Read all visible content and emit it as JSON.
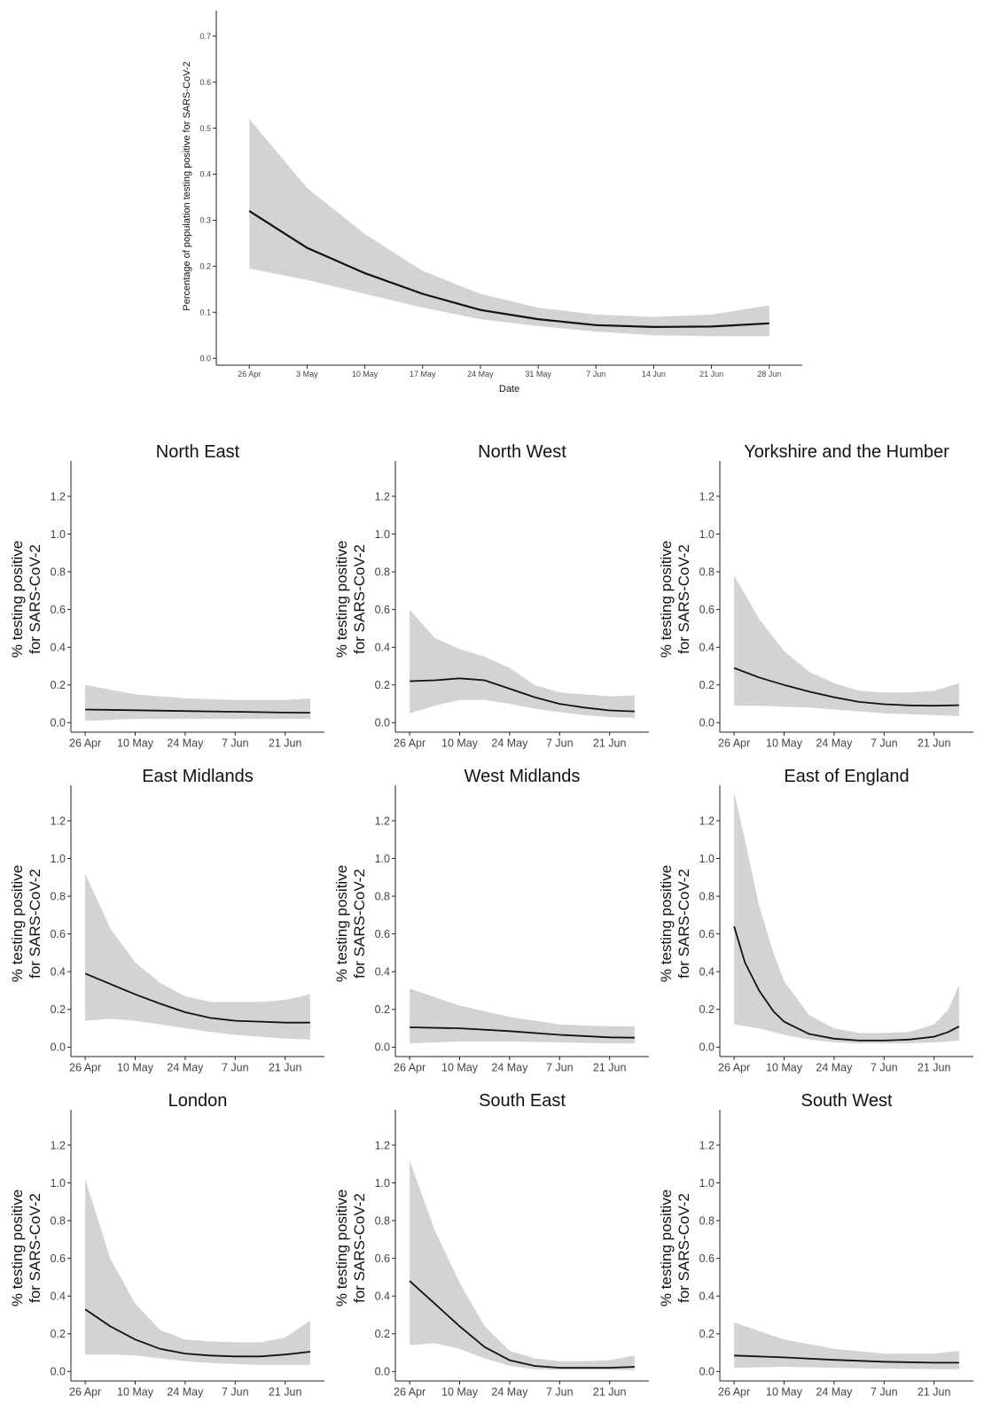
{
  "chart_data": [
    {
      "type": "line",
      "title": "",
      "xlabel": "Date",
      "ylabel": "Percentage of population testing positive for SARS-CoV-2",
      "x_ticks": [
        "26 Apr",
        "3 May",
        "10 May",
        "17 May",
        "24 May",
        "31 May",
        "7 Jun",
        "14 Jun",
        "21 Jun",
        "28 Jun"
      ],
      "y_ticks": [
        "0.0",
        "0.1",
        "0.2",
        "0.3",
        "0.4",
        "0.5",
        "0.6",
        "0.7"
      ],
      "xlim": [
        -4,
        67
      ],
      "ylim": [
        -0.015,
        0.74
      ],
      "grid": false,
      "x_days_from_26_apr": [
        0,
        7,
        14,
        21,
        28,
        35,
        42,
        49,
        56,
        63
      ],
      "series": [
        {
          "type": "line",
          "values": [
            0.32,
            0.24,
            0.185,
            0.14,
            0.105,
            0.085,
            0.072,
            0.068,
            0.069,
            0.076
          ]
        },
        {
          "type": "band",
          "lower": [
            0.195,
            0.17,
            0.14,
            0.11,
            0.085,
            0.07,
            0.058,
            0.05,
            0.048,
            0.048
          ],
          "upper": [
            0.52,
            0.37,
            0.27,
            0.19,
            0.14,
            0.11,
            0.095,
            0.09,
            0.095,
            0.115
          ]
        }
      ]
    },
    {
      "type": "line",
      "title": "North East",
      "ylabel_line1": "% testing positive",
      "ylabel_line2": "for SARS-CoV-2",
      "x_ticks": [
        "26 Apr",
        "10 May",
        "24 May",
        "7 Jun",
        "21 Jun"
      ],
      "y_ticks": [
        "0.0",
        "0.2",
        "0.4",
        "0.6",
        "0.8",
        "1.0",
        "1.2"
      ],
      "xlim": [
        -4,
        67
      ],
      "ylim": [
        -0.05,
        1.35
      ],
      "x_days_from_26_apr": [
        0,
        14,
        28,
        42,
        56,
        63
      ],
      "series": [
        {
          "type": "line",
          "values": [
            0.07,
            0.066,
            0.062,
            0.058,
            0.054,
            0.053
          ]
        },
        {
          "type": "band",
          "lower": [
            0.01,
            0.02,
            0.02,
            0.02,
            0.02,
            0.02
          ],
          "upper": [
            0.2,
            0.15,
            0.13,
            0.12,
            0.12,
            0.13
          ]
        }
      ]
    },
    {
      "type": "line",
      "title": "North West",
      "ylabel_line1": "% testing positive",
      "ylabel_line2": "for SARS-CoV-2",
      "x_ticks": [
        "26 Apr",
        "10 May",
        "24 May",
        "7 Jun",
        "21 Jun"
      ],
      "y_ticks": [
        "0.0",
        "0.2",
        "0.4",
        "0.6",
        "0.8",
        "1.0",
        "1.2"
      ],
      "xlim": [
        -4,
        67
      ],
      "ylim": [
        -0.05,
        1.35
      ],
      "x_days_from_26_apr": [
        0,
        7,
        14,
        21,
        28,
        35,
        42,
        49,
        56,
        63
      ],
      "series": [
        {
          "type": "line",
          "values": [
            0.22,
            0.225,
            0.235,
            0.225,
            0.18,
            0.135,
            0.1,
            0.08,
            0.065,
            0.06
          ]
        },
        {
          "type": "band",
          "lower": [
            0.05,
            0.09,
            0.12,
            0.12,
            0.1,
            0.075,
            0.055,
            0.04,
            0.03,
            0.025
          ],
          "upper": [
            0.6,
            0.45,
            0.39,
            0.35,
            0.29,
            0.2,
            0.16,
            0.15,
            0.14,
            0.145
          ]
        }
      ]
    },
    {
      "type": "line",
      "title": "Yorkshire and the Humber",
      "ylabel_line1": "% testing positive",
      "ylabel_line2": "for SARS-CoV-2",
      "x_ticks": [
        "26 Apr",
        "10 May",
        "24 May",
        "7 Jun",
        "21 Jun"
      ],
      "y_ticks": [
        "0.0",
        "0.2",
        "0.4",
        "0.6",
        "0.8",
        "1.0",
        "1.2"
      ],
      "xlim": [
        -4,
        67
      ],
      "ylim": [
        -0.05,
        1.35
      ],
      "x_days_from_26_apr": [
        0,
        7,
        14,
        21,
        28,
        35,
        42,
        49,
        56,
        63
      ],
      "series": [
        {
          "type": "line",
          "values": [
            0.29,
            0.24,
            0.2,
            0.165,
            0.135,
            0.11,
            0.098,
            0.092,
            0.09,
            0.093
          ]
        },
        {
          "type": "band",
          "lower": [
            0.09,
            0.09,
            0.085,
            0.08,
            0.07,
            0.06,
            0.05,
            0.045,
            0.04,
            0.035
          ],
          "upper": [
            0.78,
            0.55,
            0.38,
            0.27,
            0.21,
            0.17,
            0.16,
            0.16,
            0.17,
            0.21
          ]
        }
      ]
    },
    {
      "type": "line",
      "title": "East Midlands",
      "ylabel_line1": "% testing positive",
      "ylabel_line2": "for SARS-CoV-2",
      "x_ticks": [
        "26 Apr",
        "10 May",
        "24 May",
        "7 Jun",
        "21 Jun"
      ],
      "y_ticks": [
        "0.0",
        "0.2",
        "0.4",
        "0.6",
        "0.8",
        "1.0",
        "1.2"
      ],
      "xlim": [
        -4,
        67
      ],
      "ylim": [
        -0.05,
        1.35
      ],
      "x_days_from_26_apr": [
        0,
        7,
        14,
        21,
        28,
        35,
        42,
        49,
        56,
        63
      ],
      "series": [
        {
          "type": "line",
          "values": [
            0.39,
            0.335,
            0.28,
            0.23,
            0.185,
            0.155,
            0.14,
            0.135,
            0.13,
            0.13
          ]
        },
        {
          "type": "band",
          "lower": [
            0.14,
            0.15,
            0.14,
            0.12,
            0.1,
            0.08,
            0.065,
            0.055,
            0.045,
            0.04
          ],
          "upper": [
            0.92,
            0.63,
            0.45,
            0.34,
            0.27,
            0.24,
            0.24,
            0.24,
            0.25,
            0.28
          ]
        }
      ]
    },
    {
      "type": "line",
      "title": "West Midlands",
      "ylabel_line1": "% testing positive",
      "ylabel_line2": "for SARS-CoV-2",
      "x_ticks": [
        "26 Apr",
        "10 May",
        "24 May",
        "7 Jun",
        "21 Jun"
      ],
      "y_ticks": [
        "0.0",
        "0.2",
        "0.4",
        "0.6",
        "0.8",
        "1.0",
        "1.2"
      ],
      "xlim": [
        -4,
        67
      ],
      "ylim": [
        -0.05,
        1.35
      ],
      "x_days_from_26_apr": [
        0,
        14,
        28,
        42,
        56,
        63
      ],
      "series": [
        {
          "type": "line",
          "values": [
            0.105,
            0.1,
            0.085,
            0.065,
            0.052,
            0.05
          ]
        },
        {
          "type": "band",
          "lower": [
            0.02,
            0.03,
            0.03,
            0.025,
            0.02,
            0.02
          ],
          "upper": [
            0.31,
            0.22,
            0.16,
            0.12,
            0.11,
            0.11
          ]
        }
      ]
    },
    {
      "type": "line",
      "title": "East of England",
      "ylabel_line1": "% testing positive",
      "ylabel_line2": "for SARS-CoV-2",
      "x_ticks": [
        "26 Apr",
        "10 May",
        "24 May",
        "7 Jun",
        "21 Jun"
      ],
      "y_ticks": [
        "0.0",
        "0.2",
        "0.4",
        "0.6",
        "0.8",
        "1.0",
        "1.2"
      ],
      "xlim": [
        -4,
        67
      ],
      "ylim": [
        -0.05,
        1.35
      ],
      "x_days_from_26_apr": [
        0,
        3,
        7,
        11,
        14,
        21,
        28,
        35,
        42,
        49,
        56,
        60,
        63
      ],
      "series": [
        {
          "type": "line",
          "values": [
            0.64,
            0.45,
            0.3,
            0.19,
            0.135,
            0.07,
            0.045,
            0.035,
            0.035,
            0.04,
            0.055,
            0.08,
            0.11
          ]
        },
        {
          "type": "band",
          "lower": [
            0.12,
            0.11,
            0.1,
            0.08,
            0.065,
            0.04,
            0.025,
            0.02,
            0.02,
            0.02,
            0.025,
            0.03,
            0.035
          ],
          "upper": [
            1.35,
            1.1,
            0.75,
            0.5,
            0.35,
            0.17,
            0.1,
            0.075,
            0.075,
            0.08,
            0.12,
            0.2,
            0.33
          ]
        }
      ]
    },
    {
      "type": "line",
      "title": "London",
      "ylabel_line1": "% testing positive",
      "ylabel_line2": "for SARS-CoV-2",
      "x_ticks": [
        "26 Apr",
        "10 May",
        "24 May",
        "7 Jun",
        "21 Jun"
      ],
      "y_ticks": [
        "0.0",
        "0.2",
        "0.4",
        "0.6",
        "0.8",
        "1.0",
        "1.2"
      ],
      "xlim": [
        -4,
        67
      ],
      "ylim": [
        -0.05,
        1.35
      ],
      "x_days_from_26_apr": [
        0,
        7,
        14,
        21,
        28,
        35,
        42,
        49,
        56,
        63
      ],
      "series": [
        {
          "type": "line",
          "values": [
            0.33,
            0.24,
            0.17,
            0.12,
            0.095,
            0.085,
            0.08,
            0.08,
            0.09,
            0.105
          ]
        },
        {
          "type": "band",
          "lower": [
            0.09,
            0.09,
            0.085,
            0.07,
            0.055,
            0.045,
            0.04,
            0.035,
            0.035,
            0.035
          ],
          "upper": [
            1.02,
            0.6,
            0.36,
            0.22,
            0.17,
            0.16,
            0.155,
            0.155,
            0.18,
            0.27
          ]
        }
      ]
    },
    {
      "type": "line",
      "title": "South East",
      "ylabel_line1": "% testing positive",
      "ylabel_line2": "for SARS-CoV-2",
      "x_ticks": [
        "26 Apr",
        "10 May",
        "24 May",
        "7 Jun",
        "21 Jun"
      ],
      "y_ticks": [
        "0.0",
        "0.2",
        "0.4",
        "0.6",
        "0.8",
        "1.0",
        "1.2"
      ],
      "xlim": [
        -4,
        67
      ],
      "ylim": [
        -0.05,
        1.35
      ],
      "x_days_from_26_apr": [
        0,
        7,
        14,
        21,
        28,
        35,
        42,
        49,
        56,
        63
      ],
      "series": [
        {
          "type": "line",
          "values": [
            0.48,
            0.36,
            0.24,
            0.13,
            0.06,
            0.03,
            0.02,
            0.02,
            0.02,
            0.025
          ]
        },
        {
          "type": "band",
          "lower": [
            0.14,
            0.15,
            0.12,
            0.07,
            0.03,
            0.012,
            0.008,
            0.008,
            0.008,
            0.008
          ],
          "upper": [
            1.12,
            0.75,
            0.47,
            0.24,
            0.11,
            0.07,
            0.055,
            0.055,
            0.06,
            0.085
          ]
        }
      ]
    },
    {
      "type": "line",
      "title": "South West",
      "ylabel_line1": "% testing positive",
      "ylabel_line2": "for SARS-CoV-2",
      "x_ticks": [
        "26 Apr",
        "10 May",
        "24 May",
        "7 Jun",
        "21 Jun"
      ],
      "y_ticks": [
        "0.0",
        "0.2",
        "0.4",
        "0.6",
        "0.8",
        "1.0",
        "1.2"
      ],
      "xlim": [
        -4,
        67
      ],
      "ylim": [
        -0.05,
        1.35
      ],
      "x_days_from_26_apr": [
        0,
        14,
        28,
        42,
        56,
        63
      ],
      "series": [
        {
          "type": "line",
          "values": [
            0.085,
            0.075,
            0.062,
            0.052,
            0.047,
            0.047
          ]
        },
        {
          "type": "band",
          "lower": [
            0.02,
            0.025,
            0.02,
            0.015,
            0.012,
            0.012
          ],
          "upper": [
            0.26,
            0.17,
            0.12,
            0.095,
            0.095,
            0.11
          ]
        }
      ]
    }
  ]
}
